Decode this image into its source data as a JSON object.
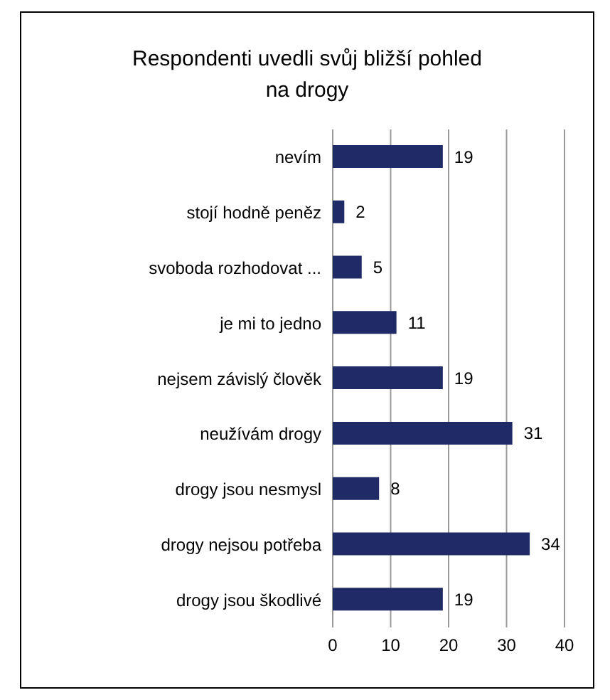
{
  "chart_data": {
    "type": "bar",
    "orientation": "horizontal",
    "title": "Respondenti uvedli svůj bližší pohled na drogy",
    "categories": [
      "nevím",
      "stojí hodně peněz",
      "svoboda rozhodovat ...",
      "je mi to jedno",
      "nejsem závislý člověk",
      "neužívám drogy",
      "drogy jsou nesmysl",
      "drogy nejsou potřeba",
      "drogy jsou škodlivé"
    ],
    "values": [
      19,
      2,
      5,
      11,
      19,
      31,
      8,
      34,
      19
    ],
    "color": "#1f2a66",
    "xlim": [
      0,
      40
    ],
    "xticks": [
      0,
      10,
      20,
      30,
      40
    ],
    "grid": "x",
    "data_labels": true
  }
}
